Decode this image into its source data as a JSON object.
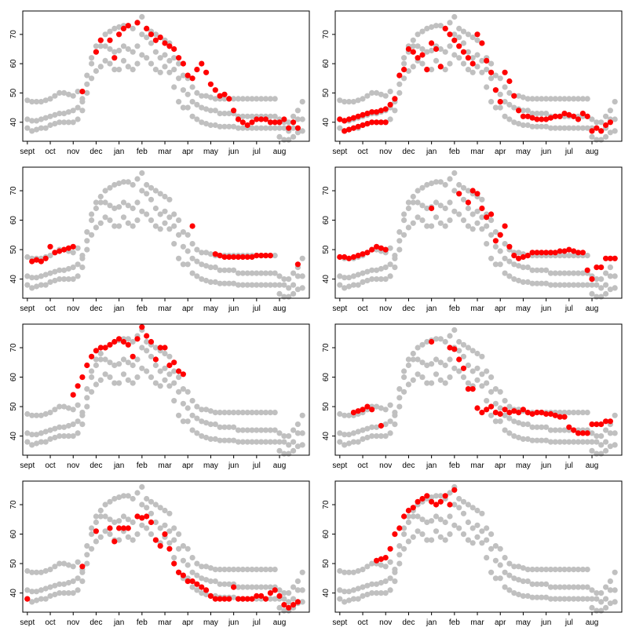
{
  "colors": {
    "background": "#c0c0c0",
    "highlight": "#ff0000",
    "frame": "#000000"
  },
  "chart_data": {
    "type": "scatter",
    "layout": "4 rows x 2 columns of panels sharing the same background data",
    "grid": false,
    "legend": "none",
    "x_categories": [
      "sept",
      "oct",
      "nov",
      "dec",
      "jan",
      "feb",
      "mar",
      "apr",
      "may",
      "jun",
      "jul",
      "aug"
    ],
    "x_ticks": [
      {
        "label": "sept",
        "x": 0
      },
      {
        "label": "oct",
        "x": 1
      },
      {
        "label": "nov",
        "x": 2
      },
      {
        "label": "dec",
        "x": 3
      },
      {
        "label": "jan",
        "x": 4
      },
      {
        "label": "feb",
        "x": 5
      },
      {
        "label": "mar",
        "x": 6
      },
      {
        "label": "apr",
        "x": 7
      },
      {
        "label": "may",
        "x": 8
      },
      {
        "label": "jun",
        "x": 9
      },
      {
        "label": "jul",
        "x": 10
      },
      {
        "label": "aug",
        "x": 11
      }
    ],
    "y_ticks": [
      40,
      50,
      60,
      70
    ],
    "xlim": [
      -0.2,
      12.3
    ],
    "ylim": [
      33.5,
      78
    ],
    "background_series": {
      "name": "",
      "description": "three repeated traces drawn in grey in every panel",
      "x": [
        0,
        0.2,
        0.4,
        0.6,
        0.8,
        1,
        1.2,
        1.4,
        1.6,
        1.8,
        2,
        2.2,
        2.4,
        2.6,
        2.8,
        3,
        3.2,
        3.4,
        3.6,
        3.8,
        4,
        4.2,
        4.4,
        4.6,
        4.8,
        5,
        5.2,
        5.4,
        5.6,
        5.8,
        6,
        6.2,
        6.4,
        6.6,
        6.8,
        7,
        7.2,
        7.4,
        7.6,
        7.8,
        8,
        8.2,
        8.4,
        8.6,
        8.8,
        9,
        9.2,
        9.4,
        9.6,
        9.8,
        10,
        10.2,
        10.4,
        10.6,
        10.8,
        11,
        11.2,
        11.4,
        11.6,
        11.8,
        12
      ],
      "upper": [
        47.5,
        47,
        47,
        47,
        47.5,
        48,
        49,
        50,
        50,
        49.5,
        49,
        50.5,
        48,
        56,
        62,
        66,
        68,
        70,
        71,
        72,
        72.5,
        73,
        73,
        72,
        74,
        76,
        72,
        71,
        70,
        69,
        68,
        67,
        62,
        60,
        56,
        55,
        52,
        50,
        49,
        49,
        48.5,
        48,
        48,
        48,
        48,
        48,
        48,
        48,
        48,
        48,
        48,
        48,
        48,
        48,
        48,
        41,
        40,
        40,
        42,
        44,
        47
      ],
      "middle": [
        41,
        40.5,
        40.5,
        41,
        41.5,
        42,
        42.5,
        43,
        43,
        43.5,
        44,
        45,
        47,
        53,
        60,
        64,
        66,
        66,
        65,
        64,
        64.5,
        66,
        65,
        64,
        66,
        70,
        69,
        67,
        64,
        62,
        63,
        61,
        58,
        55,
        51,
        49.5,
        47,
        46,
        45,
        44.5,
        44,
        44,
        43,
        43,
        43,
        43,
        42,
        42,
        42,
        42,
        42,
        42,
        42,
        42,
        42,
        38,
        38,
        37,
        38,
        41,
        41
      ],
      "lower": [
        38,
        37,
        37.5,
        38,
        38,
        39,
        39.5,
        40,
        40,
        40,
        40,
        41,
        44,
        50,
        55,
        57.5,
        59,
        61,
        60,
        58,
        58,
        61,
        59,
        58,
        60,
        63,
        62,
        60,
        58,
        57,
        59,
        57,
        52,
        47,
        45,
        45,
        42,
        41,
        40,
        39.5,
        39,
        39,
        38.5,
        38.5,
        38.5,
        38.5,
        38,
        38,
        38,
        38,
        38,
        38,
        38,
        38,
        38,
        35,
        34,
        34,
        35,
        36.5,
        37
      ]
    },
    "highlight_series": [
      {
        "panel": 1,
        "x": [
          2.4,
          3,
          3.2,
          3.6,
          3.8,
          4,
          4.2,
          4.4,
          4.8,
          5.2,
          5.4,
          5.6,
          5.8,
          6,
          6.2,
          6.4,
          6.6,
          6.8,
          7,
          7.2,
          7.4,
          7.6,
          7.8,
          8,
          8.2,
          8.4,
          8.6,
          8.8,
          9,
          9.2,
          9.4,
          9.6,
          9.8,
          10,
          10.2,
          10.4,
          10.6,
          10.8,
          11,
          11.2,
          11.4,
          11.6,
          11.8
        ],
        "y": [
          50.5,
          64,
          68,
          68,
          62,
          70,
          72,
          73,
          74,
          72,
          70,
          68,
          69,
          67,
          66,
          65,
          62,
          60,
          56,
          55,
          58,
          60,
          57,
          53,
          51,
          49,
          49.5,
          48,
          44,
          41,
          40,
          39,
          40,
          41,
          41,
          41,
          40,
          40,
          40,
          41,
          38,
          40,
          38
        ]
      },
      {
        "panel": 2,
        "x": [
          0,
          0.2,
          0.4,
          0.6,
          0.8,
          1,
          1.2,
          1.4,
          1.6,
          1.8,
          2,
          2.2,
          2.4,
          2.6,
          2.8,
          3,
          3.2,
          3.4,
          3.6,
          3.8,
          4,
          4.2,
          4.4,
          4.6,
          4.8,
          5,
          5.2,
          5.4,
          5.6,
          5.8,
          6,
          6.2,
          6.4,
          6.6,
          6.8,
          7,
          7.2,
          7.4,
          7.6,
          7.8,
          8,
          8.2,
          8.4,
          8.6,
          8.8,
          9,
          9.2,
          9.4,
          9.6,
          9.8,
          10,
          10.2,
          10.4,
          10.6,
          10.8,
          11,
          11.2,
          11.4,
          11.6,
          11.8
        ],
        "y": [
          41,
          40.5,
          41,
          41.5,
          42,
          42.5,
          43,
          43.5,
          43.5,
          44,
          44.5,
          46,
          48,
          56,
          58,
          65,
          64,
          62,
          63,
          58,
          67,
          65,
          59,
          72,
          70,
          68,
          66,
          64,
          62,
          60,
          70,
          67,
          61,
          57,
          51,
          47,
          57,
          54,
          49,
          44,
          42,
          42,
          41.5,
          41,
          41,
          41,
          41.5,
          42,
          42,
          43,
          42.5,
          42,
          41,
          43,
          42,
          37,
          38,
          37,
          39,
          40
        ]
      },
      {
        "panel": 2,
        "x": [
          0.2,
          0.4,
          0.6,
          0.8,
          1,
          1.2,
          1.4,
          1.6,
          1.8,
          2
        ],
        "y": [
          37,
          37.5,
          38,
          38.5,
          39,
          39.5,
          40,
          40,
          40,
          40
        ]
      },
      {
        "panel": 3,
        "x": [
          0.2,
          0.4,
          0.6,
          0.8,
          1,
          1.2,
          1.4,
          1.6,
          1.8,
          2,
          7.2,
          8.2,
          8.4,
          8.6,
          8.8,
          9,
          9.2,
          9.4,
          9.6,
          9.8,
          10,
          10.2,
          10.4,
          10.6,
          11.8
        ],
        "y": [
          46,
          46.5,
          46,
          47,
          51,
          49,
          49.5,
          50,
          50.5,
          51,
          58,
          48.5,
          48,
          47.5,
          47.5,
          47.5,
          47.5,
          47.5,
          47.5,
          47.5,
          48,
          48,
          48,
          48,
          45
        ]
      },
      {
        "panel": 4,
        "x": [
          0,
          0.2,
          0.4,
          0.6,
          0.8,
          1,
          1.2,
          1.4,
          1.6,
          1.8,
          2,
          4,
          5.2,
          5.6,
          5.8,
          6,
          6.2,
          6.4,
          6.6,
          6.8,
          7,
          7.2,
          7.4,
          7.6,
          7.8,
          8,
          8.2,
          8.4,
          8.6,
          8.8,
          9,
          9.2,
          9.4,
          9.6,
          9.8,
          10,
          10.2,
          10.4,
          10.6,
          10.8,
          11,
          11.2,
          11.4,
          11.6,
          11.8,
          12
        ],
        "y": [
          47.5,
          47.5,
          47,
          47.5,
          48,
          48.5,
          49,
          50,
          51,
          50.5,
          50,
          64,
          69,
          66,
          70,
          69,
          64,
          61,
          62,
          53,
          55,
          58,
          51,
          48,
          47,
          47.5,
          48,
          49,
          49,
          49,
          49,
          49,
          49,
          49.5,
          49.5,
          50,
          49.5,
          49,
          49,
          43,
          40,
          44,
          44,
          47,
          47,
          47
        ]
      },
      {
        "panel": 5,
        "x": [
          2,
          2.2,
          2.4,
          2.6,
          2.8,
          3,
          3.2,
          3.4,
          3.6,
          3.8,
          4,
          4.2,
          4.4,
          4.6,
          4.8,
          5,
          5.2,
          5.4,
          5.6,
          5.8,
          6,
          6.2,
          6.4,
          6.6,
          6.8
        ],
        "y": [
          54,
          57,
          60,
          64,
          67,
          69,
          70,
          70,
          71,
          72,
          73,
          72,
          71,
          67,
          73,
          77,
          74,
          72,
          66,
          70,
          70,
          64,
          65,
          62,
          61
        ]
      },
      {
        "panel": 6,
        "x": [
          0.6,
          0.8,
          1,
          1.2,
          1.4,
          1.8,
          4,
          4.8,
          5,
          5.2,
          5.4,
          5.6,
          5.8,
          6,
          6.2,
          6.4,
          6.6,
          6.8,
          7,
          7.2,
          7.4,
          7.6,
          7.8,
          8,
          8.2,
          8.4,
          8.6,
          8.8,
          9,
          9.2,
          9.4,
          9.6,
          9.8,
          10,
          10.2,
          10.4,
          10.6,
          10.8,
          11,
          11.2,
          11.4,
          11.6,
          11.8
        ],
        "y": [
          48,
          48.5,
          49,
          50,
          49,
          43.5,
          72,
          70,
          69.5,
          66,
          63,
          56,
          56,
          49.5,
          48,
          49,
          50,
          48,
          47.5,
          49,
          48,
          48.5,
          48,
          49,
          48,
          47.5,
          48,
          48,
          47.5,
          47.5,
          47,
          46.5,
          46.5,
          43,
          42,
          41,
          41,
          41,
          44,
          44,
          44,
          45,
          45
        ]
      },
      {
        "panel": 7,
        "x": [
          0,
          2.4,
          3,
          3.6,
          3.8,
          4,
          4.2,
          4.4,
          4.8,
          5,
          5.2,
          5.4,
          5.6,
          5.8,
          6,
          6.2,
          6.4,
          6.6,
          6.8,
          7,
          7.2,
          7.4,
          7.6,
          7.8,
          8,
          8.2,
          8.4,
          8.6,
          8.8,
          9,
          9.2,
          9.4,
          9.6,
          9.8,
          10,
          10.2,
          10.4,
          10.6,
          10.8,
          11,
          11.2,
          11.4,
          11.6,
          11.8
        ],
        "y": [
          38,
          49,
          61,
          62,
          57.5,
          62,
          62,
          62,
          66,
          65.5,
          66,
          64,
          58,
          56,
          60,
          55,
          50,
          47,
          46,
          44,
          44,
          43,
          42,
          41,
          39,
          38,
          38,
          38,
          38,
          42,
          38,
          38,
          38,
          38,
          39,
          39,
          38,
          40,
          41,
          39,
          36,
          35,
          36,
          37
        ]
      },
      {
        "panel": 8,
        "x": [
          1.6,
          1.8,
          2,
          2.2,
          2.4,
          2.6,
          2.8,
          3,
          3.2,
          3.4,
          3.6,
          3.8,
          4,
          4.2,
          4.4,
          4.6,
          4.8,
          5
        ],
        "y": [
          51,
          51.5,
          52,
          55,
          60,
          62,
          66,
          68,
          69,
          71,
          72,
          73,
          71,
          70,
          71,
          73,
          70,
          75
        ]
      }
    ]
  },
  "panels": [
    {
      "id": 1,
      "x_tick_labels": [
        "sept",
        "oct",
        "nov",
        "dec",
        "jan",
        "feb",
        "mar",
        "apr",
        "may",
        "jun",
        "jul",
        "aug"
      ],
      "y_tick_labels": [
        "40",
        "50",
        "60",
        "70"
      ]
    },
    {
      "id": 2,
      "x_tick_labels": [
        "sept",
        "oct",
        "nov",
        "dec",
        "jan",
        "feb",
        "mar",
        "apr",
        "may",
        "jun",
        "jul",
        "aug"
      ],
      "y_tick_labels": [
        "40",
        "50",
        "60",
        "70"
      ]
    },
    {
      "id": 3,
      "x_tick_labels": [
        "sept",
        "oct",
        "nov",
        "dec",
        "jan",
        "feb",
        "mar",
        "apr",
        "may",
        "jun",
        "jul",
        "aug"
      ],
      "y_tick_labels": [
        "40",
        "50",
        "60",
        "70"
      ]
    },
    {
      "id": 4,
      "x_tick_labels": [
        "sept",
        "oct",
        "nov",
        "dec",
        "jan",
        "feb",
        "mar",
        "apr",
        "may",
        "jun",
        "jul",
        "aug"
      ],
      "y_tick_labels": [
        "40",
        "50",
        "60",
        "70"
      ]
    },
    {
      "id": 5,
      "x_tick_labels": [
        "sept",
        "oct",
        "nov",
        "dec",
        "jan",
        "feb",
        "mar",
        "apr",
        "may",
        "jun",
        "jul",
        "aug"
      ],
      "y_tick_labels": [
        "40",
        "50",
        "60",
        "70"
      ]
    },
    {
      "id": 6,
      "x_tick_labels": [
        "sept",
        "oct",
        "nov",
        "dec",
        "jan",
        "feb",
        "mar",
        "apr",
        "may",
        "jun",
        "jul",
        "aug"
      ],
      "y_tick_labels": [
        "40",
        "50",
        "60",
        "70"
      ]
    },
    {
      "id": 7,
      "x_tick_labels": [
        "sept",
        "oct",
        "nov",
        "dec",
        "jan",
        "feb",
        "mar",
        "apr",
        "may",
        "jun",
        "jul",
        "aug"
      ],
      "y_tick_labels": [
        "40",
        "50",
        "60",
        "70"
      ]
    },
    {
      "id": 8,
      "x_tick_labels": [
        "sept",
        "oct",
        "nov",
        "dec",
        "jan",
        "feb",
        "mar",
        "apr",
        "may",
        "jun",
        "jul",
        "aug"
      ],
      "y_tick_labels": [
        "40",
        "50",
        "60",
        "70"
      ]
    }
  ]
}
